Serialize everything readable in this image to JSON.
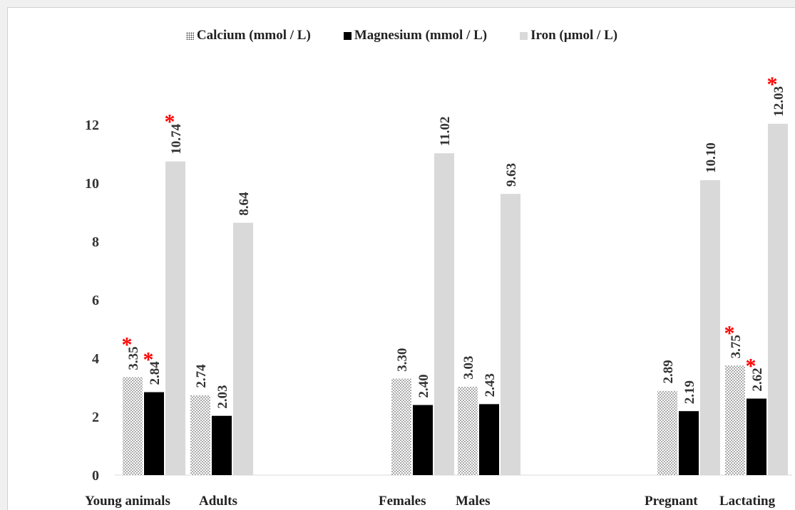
{
  "chart_data": {
    "type": "bar",
    "categories": [
      "Young animals",
      "Adults",
      "Females",
      "Males",
      "Pregnant",
      "Lactating"
    ],
    "groups": [
      {
        "label": "",
        "members": [
          "Young animals",
          "Adults"
        ]
      },
      {
        "label": "",
        "members": [
          "Females",
          "Males"
        ]
      },
      {
        "label": "",
        "members": [
          "Pregnant",
          "Lactating"
        ]
      }
    ],
    "series": [
      {
        "name": "Calcium (mmol / L)",
        "values": [
          3.35,
          2.74,
          3.3,
          3.03,
          2.89,
          3.75
        ],
        "labels": [
          "3.35",
          "2.74",
          "3.30",
          "3.03",
          "2.89",
          "3.75"
        ],
        "starred": [
          true,
          false,
          false,
          false,
          false,
          true
        ],
        "color": "#ffffff",
        "pattern": "dotted"
      },
      {
        "name": "Magnesium (mmol / L)",
        "values": [
          2.84,
          2.03,
          2.4,
          2.43,
          2.19,
          2.62
        ],
        "labels": [
          "2.84",
          "2.03",
          "2.40",
          "2.43",
          "2.19",
          "2.62"
        ],
        "starred": [
          true,
          false,
          false,
          false,
          false,
          true
        ],
        "color": "#000000"
      },
      {
        "name": "Iron (µmol / L)",
        "values": [
          10.74,
          8.64,
          11.02,
          9.63,
          10.1,
          12.03
        ],
        "labels": [
          "10.74",
          "8.64",
          "11.02",
          "9.63",
          "10.10",
          "12.03"
        ],
        "starred": [
          true,
          false,
          false,
          false,
          false,
          true
        ],
        "color": "#d9d9d9"
      }
    ],
    "yticks": [
      "0",
      "2",
      "4",
      "6",
      "8",
      "10",
      "12"
    ],
    "ylim": [
      0,
      13.5
    ],
    "grid": false,
    "legend_position": "top",
    "annotation_symbol": "*",
    "annotation_color": "#ff0000",
    "title": "",
    "xlabel": "",
    "ylabel": ""
  }
}
